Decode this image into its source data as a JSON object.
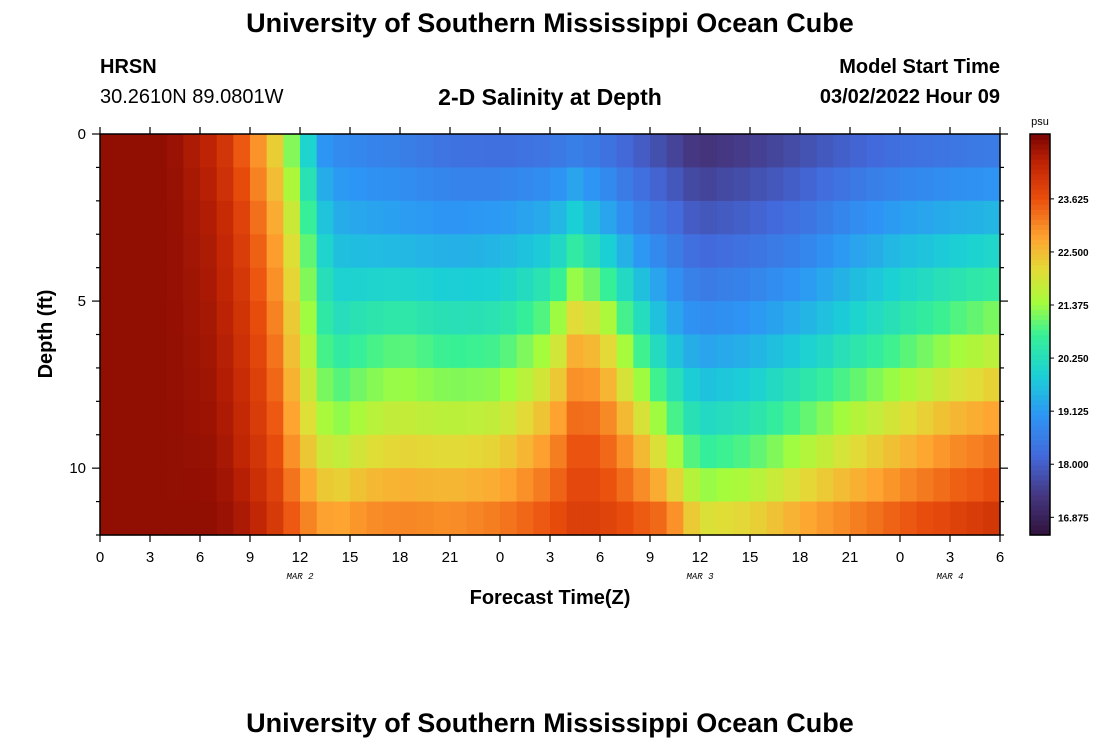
{
  "header": {
    "title": "University of Southern Mississippi Ocean Cube",
    "station": "HRSN",
    "coordinates": "30.2610N  89.0801W",
    "subtitle": "2-D Salinity at Depth",
    "model_start_label": "Model Start Time",
    "model_start_value": "03/02/2022 Hour 09"
  },
  "footer": {
    "title": "University of Southern Mississippi Ocean Cube"
  },
  "chart_data": {
    "type": "heatmap",
    "title": "2-D Salinity at Depth",
    "xlabel": "Forecast Time(Z)",
    "ylabel": "Depth (ft)",
    "x_range_hours": [
      0,
      54
    ],
    "x_ticks": [
      "0",
      "3",
      "6",
      "9",
      "12",
      "15",
      "18",
      "21",
      "0",
      "3",
      "6",
      "9",
      "12",
      "15",
      "18",
      "21",
      "0",
      "3",
      "6"
    ],
    "date_labels": [
      {
        "text": "MAR 2",
        "hour": 12
      },
      {
        "text": "MAR 3",
        "hour": 36
      },
      {
        "text": "MAR 4",
        "hour": 51
      }
    ],
    "y_range": [
      0,
      12
    ],
    "y_ticks": [
      "0",
      "5",
      "10"
    ],
    "colorbar": {
      "unit": "psu",
      "min": 16.5,
      "max": 25.0,
      "labels": [
        "23.625",
        "22.500",
        "21.375",
        "20.250",
        "19.125",
        "18.000",
        "16.875"
      ]
    },
    "time_knots": [
      0,
      4,
      7,
      9,
      10.5,
      12,
      12.8,
      13.6,
      14.5,
      16,
      18,
      21,
      24,
      27,
      28.5,
      30,
      32,
      34,
      36,
      39,
      42,
      45,
      48,
      51,
      54
    ],
    "depth_knots": [
      0,
      3,
      6,
      9,
      11.5
    ],
    "salinity_grid": [
      [
        24.8,
        24.8,
        24.8,
        24.8,
        24.8
      ],
      [
        24.8,
        24.8,
        24.8,
        24.8,
        24.8
      ],
      [
        24.3,
        24.5,
        24.6,
        24.7,
        24.8
      ],
      [
        23.2,
        23.7,
        24.0,
        24.2,
        24.5
      ],
      [
        22.2,
        22.8,
        23.2,
        23.6,
        24.0
      ],
      [
        20.5,
        21.6,
        22.0,
        22.5,
        23.3
      ],
      [
        19.4,
        20.5,
        21.2,
        22.0,
        23.0
      ],
      [
        18.8,
        19.8,
        20.6,
        21.6,
        22.8
      ],
      [
        18.7,
        19.5,
        20.4,
        21.5,
        22.8
      ],
      [
        18.6,
        19.4,
        20.6,
        21.8,
        23.0
      ],
      [
        18.5,
        19.3,
        20.8,
        22.0,
        23.1
      ],
      [
        18.2,
        19.2,
        20.5,
        21.9,
        23.0
      ],
      [
        18.1,
        19.3,
        20.6,
        22.0,
        23.2
      ],
      [
        18.2,
        19.6,
        21.3,
        22.8,
        23.6
      ],
      [
        18.3,
        20.2,
        22.5,
        23.5,
        23.9
      ],
      [
        18.2,
        19.7,
        22.3,
        23.5,
        23.9
      ],
      [
        17.9,
        18.9,
        20.8,
        22.6,
        23.6
      ],
      [
        17.5,
        18.5,
        19.6,
        21.4,
        23.3
      ],
      [
        17.1,
        18.0,
        19.0,
        20.3,
        22.0
      ],
      [
        17.3,
        18.2,
        19.2,
        20.6,
        22.2
      ],
      [
        17.6,
        18.5,
        19.6,
        21.2,
        22.7
      ],
      [
        17.9,
        19.0,
        20.1,
        21.8,
        23.1
      ],
      [
        18.1,
        19.4,
        20.6,
        22.3,
        23.5
      ],
      [
        18.2,
        19.6,
        21.1,
        22.8,
        23.8
      ],
      [
        18.3,
        19.8,
        21.5,
        23.1,
        24.1
      ]
    ]
  },
  "colors": {
    "axis": "#000000",
    "background": "#ffffff"
  }
}
